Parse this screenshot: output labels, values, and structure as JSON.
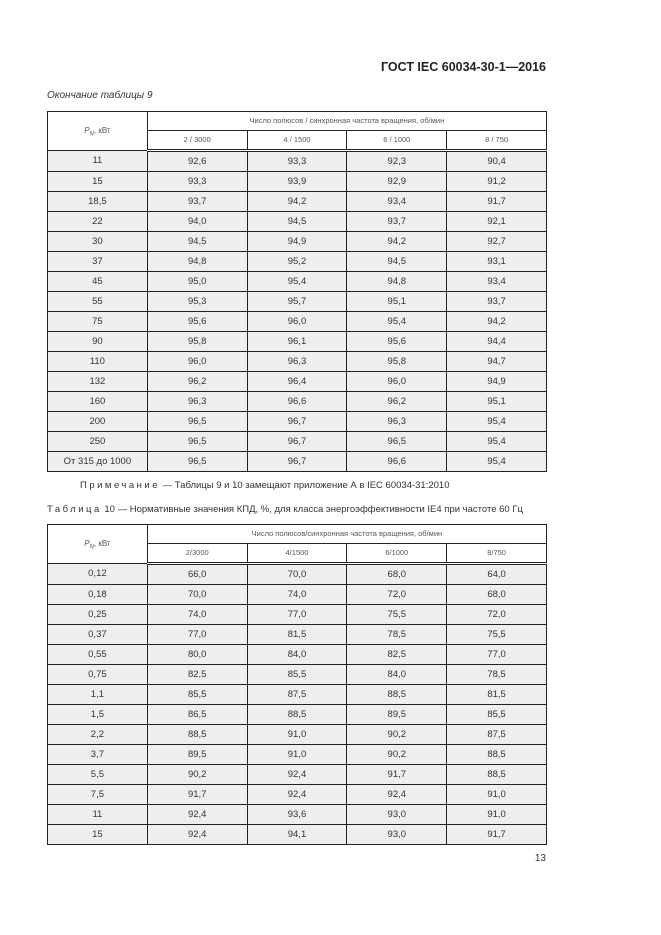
{
  "header": {
    "doc_id": "ГОСТ IEC 60034-30-1—2016"
  },
  "table9": {
    "continuation": "Окончание таблицы 9",
    "pn_label": "P",
    "pn_sub": "N",
    "pn_unit": ", кВт",
    "group_header": "Число полюсов / синхронная частота вращения, об/мин",
    "columns": [
      "2 / 3000",
      "4 / 1500",
      "6 / 1000",
      "8 / 750"
    ],
    "rows": [
      [
        "11",
        "92,6",
        "93,3",
        "92,3",
        "90,4"
      ],
      [
        "15",
        "93,3",
        "93,9",
        "92,9",
        "91,2"
      ],
      [
        "18,5",
        "93,7",
        "94,2",
        "93,4",
        "91,7"
      ],
      [
        "22",
        "94,0",
        "94,5",
        "93,7",
        "92,1"
      ],
      [
        "30",
        "94,5",
        "94,9",
        "94,2",
        "92,7"
      ],
      [
        "37",
        "94,8",
        "95,2",
        "94,5",
        "93,1"
      ],
      [
        "45",
        "95,0",
        "95,4",
        "94,8",
        "93,4"
      ],
      [
        "55",
        "95,3",
        "95,7",
        "95,1",
        "93,7"
      ],
      [
        "75",
        "95,6",
        "96,0",
        "95,4",
        "94,2"
      ],
      [
        "90",
        "95,8",
        "96,1",
        "95,6",
        "94,4"
      ],
      [
        "110",
        "96,0",
        "96,3",
        "95,8",
        "94,7"
      ],
      [
        "132",
        "96,2",
        "96,4",
        "96,0",
        "94,9"
      ],
      [
        "160",
        "96,3",
        "96,6",
        "96,2",
        "95,1"
      ],
      [
        "200",
        "96,5",
        "96,7",
        "96,3",
        "95,4"
      ],
      [
        "250",
        "96,5",
        "96,7",
        "96,5",
        "95,4"
      ],
      [
        "От 315 до 1000",
        "96,5",
        "96,7",
        "96,6",
        "95,4"
      ]
    ]
  },
  "note": {
    "label": "Примечание",
    "text": " — Таблицы 9 и 10 замещают приложение А в IEC 60034-31:2010"
  },
  "table10": {
    "caption_label": "Таблица",
    "caption_text": " 10 — Нормативные значения КПД, %, для класса энергоэффективности IE4 при частоте 60 Гц",
    "pn_label": "P",
    "pn_sub": "N",
    "pn_unit": ", кВт",
    "group_header": "Число полюсов/синхронная частота вращения, об/мин",
    "columns": [
      "2/3000",
      "4/1500",
      "6/1000",
      "8/750"
    ],
    "rows": [
      [
        "0,12",
        "66,0",
        "70,0",
        "68,0",
        "64,0"
      ],
      [
        "0,18",
        "70,0",
        "74,0",
        "72,0",
        "68,0"
      ],
      [
        "0,25",
        "74,0",
        "77,0",
        "75,5",
        "72,0"
      ],
      [
        "0,37",
        "77,0",
        "81,5",
        "78,5",
        "75,5"
      ],
      [
        "0,55",
        "80,0",
        "84,0",
        "82,5",
        "77,0"
      ],
      [
        "0,75",
        "82,5",
        "85,5",
        "84,0",
        "78,5"
      ],
      [
        "1,1",
        "85,5",
        "87,5",
        "88,5",
        "81,5"
      ],
      [
        "1,5",
        "86,5",
        "88,5",
        "89,5",
        "85,5"
      ],
      [
        "2,2",
        "88,5",
        "91,0",
        "90,2",
        "87,5"
      ],
      [
        "3,7",
        "89,5",
        "91,0",
        "90,2",
        "88,5"
      ],
      [
        "5,5",
        "90,2",
        "92,4",
        "91,7",
        "88,5"
      ],
      [
        "7,5",
        "91,7",
        "92,4",
        "92,4",
        "91,0"
      ],
      [
        "11",
        "92,4",
        "93,6",
        "93,0",
        "91,0"
      ],
      [
        "15",
        "92,4",
        "94,1",
        "93,0",
        "91,7"
      ]
    ]
  },
  "page_number": "13"
}
